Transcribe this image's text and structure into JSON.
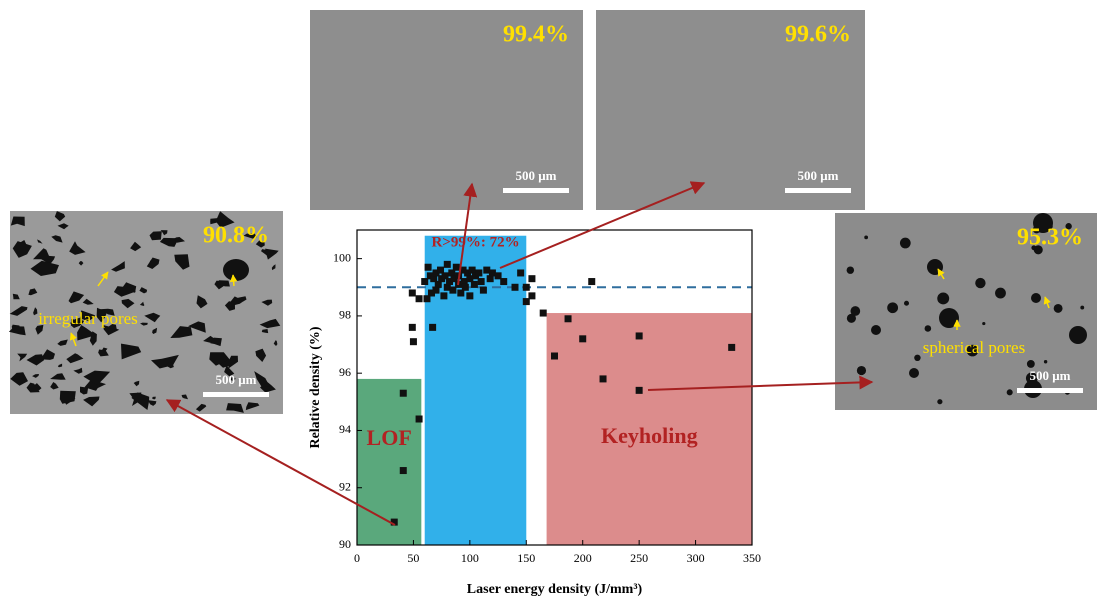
{
  "chart_data": {
    "type": "scatter",
    "xlabel": "Laser energy density (J/mm³)",
    "ylabel": "Relative density (%)",
    "xlim": [
      0,
      350
    ],
    "xticks": [
      0,
      50,
      100,
      150,
      200,
      250,
      300,
      350
    ],
    "ylim": [
      90,
      101
    ],
    "yticks": [
      90,
      92,
      94,
      96,
      98,
      100
    ],
    "color": "#111111",
    "x": [
      60,
      62,
      63,
      65,
      66,
      68,
      70,
      70,
      72,
      74,
      75,
      77,
      78,
      80,
      80,
      82,
      84,
      85,
      86,
      88,
      90,
      90,
      92,
      94,
      95,
      96,
      98,
      100,
      100,
      102,
      104,
      105,
      108,
      110,
      112,
      115,
      118,
      120,
      125,
      130,
      140,
      145,
      33,
      41,
      41,
      55,
      49,
      50,
      49,
      55,
      67,
      150,
      150,
      155,
      155,
      165,
      175,
      187,
      200,
      208,
      218,
      250,
      250,
      332
    ],
    "values": [
      99.2,
      98.6,
      99.7,
      99.4,
      98.8,
      99.3,
      99.5,
      98.9,
      99.1,
      99.6,
      99.3,
      98.7,
      99.4,
      99.0,
      99.8,
      99.2,
      99.5,
      98.9,
      99.3,
      99.7,
      99.1,
      99.4,
      98.8,
      99.6,
      99.2,
      99.0,
      99.5,
      99.3,
      98.7,
      99.6,
      99.1,
      99.4,
      99.5,
      99.2,
      98.9,
      99.6,
      99.3,
      99.5,
      99.4,
      99.2,
      99.0,
      99.5,
      90.8,
      92.6,
      95.3,
      94.4,
      97.6,
      97.1,
      98.8,
      98.6,
      97.6,
      98.5,
      99.0,
      98.7,
      99.3,
      98.1,
      96.6,
      97.9,
      97.2,
      99.2,
      95.8,
      97.3,
      95.4,
      96.9
    ],
    "hline": {
      "value": 99,
      "color": "#2f6e9e"
    },
    "regions": [
      {
        "label": "LOF",
        "color": "#5aa87c",
        "xlim": [
          0,
          57
        ],
        "ylim": [
          90,
          95.8
        ]
      },
      {
        "label": "R>99%: 72%",
        "color": "#31b0ea",
        "xlim": [
          60,
          150
        ],
        "ylim": [
          90,
          100.8
        ]
      },
      {
        "label": "Keyholing",
        "color": "#dc8c8c",
        "xlim": [
          168,
          350
        ],
        "ylim": [
          90,
          98.1
        ]
      }
    ]
  },
  "insets": [
    {
      "percent": "90.8%",
      "scale": "500 μm",
      "note": "irregular pores"
    },
    {
      "percent": "99.4%",
      "scale": "500 μm"
    },
    {
      "percent": "99.6%",
      "scale": "500 μm"
    },
    {
      "percent": "95.3%",
      "scale": "500 μm",
      "note": "spherical pores"
    }
  ]
}
